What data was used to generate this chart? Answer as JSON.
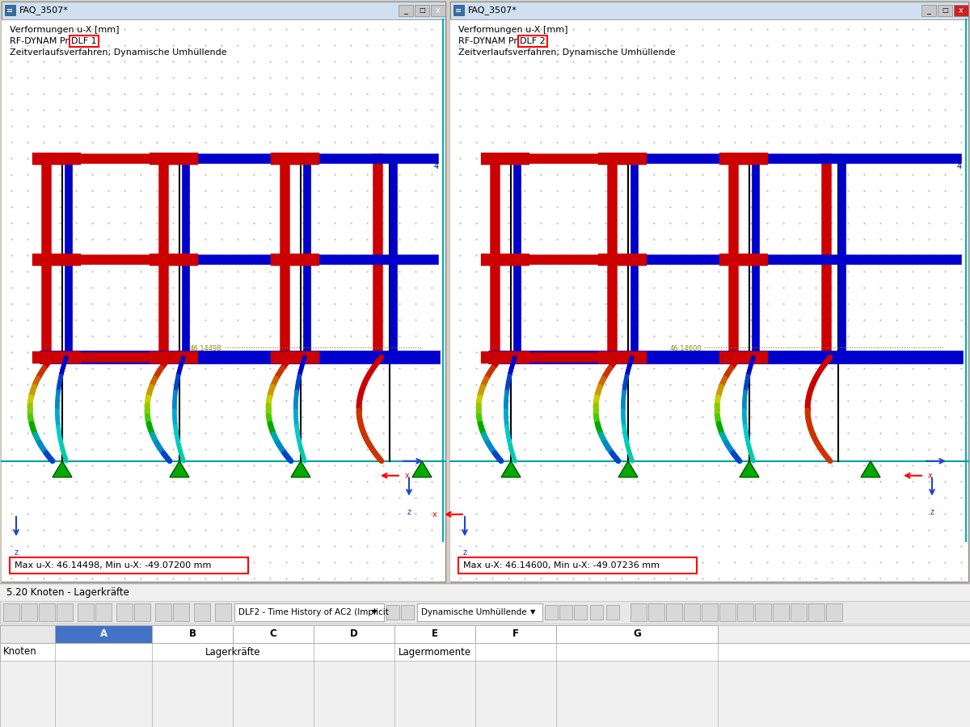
{
  "bg_color": "#d4d0c8",
  "window_bg": "#ffffff",
  "content_bg": "#f0f0f0",
  "grid_dot_color": "#c8c8c8",
  "title_bar_color": "#d0e0f0",
  "border_color": "#808080",
  "cyan_line_color": "#00b0b0",
  "left_window": {
    "title": "FAQ_3507*",
    "line1": "Verformungen u-X [mm]",
    "line2_pre": "RF-DYNAM Pro",
    "line2_box": "DLF 1",
    "line3": "Zeitverlaufsverfahren; Dynamische Umhüllende",
    "label_value": "46.14498",
    "result_text": "Max u-X: 46.14498, Min u-X: -49.07200 mm"
  },
  "right_window": {
    "title": "FAQ_3507*",
    "line1": "Verformungen u-X [mm]",
    "line2_pre": "RF-DYNAM Pro",
    "line2_box": "DLF 2",
    "line3": "Zeitverlaufsverfahren; Dynamische Umhüllende",
    "label_value": "46.14600",
    "result_text": "Max u-X: 46.14600, Min u-X: -49.07236 mm"
  },
  "bottom_bar": {
    "text": "5.20 Knoten - Lagerkräfte",
    "toolbar_text": "DLF2 - Time History of AC2 (Implicit",
    "toolbar_text2": "Dynamische Umhüllende",
    "col_a": "A",
    "col_b": "B",
    "col_c": "C",
    "col_d": "D",
    "col_e": "E",
    "col_f": "F",
    "col_g": "G",
    "row_knoten": "Knoten",
    "row_lagerkraefte": "Lagerkräfte",
    "row_lagermomente": "Lagermomente"
  },
  "frame_colors": {
    "red": "#cc0000",
    "blue": "#0000cc",
    "black": "#000000",
    "green": "#00aa00",
    "cyan_ground": "#00a0a0",
    "label_yellow": "#888800",
    "deform_colors": [
      "#cc0000",
      "#cc3300",
      "#cc6600",
      "#cc9900",
      "#cccc00",
      "#88cc00",
      "#44cc00",
      "#00aa00",
      "#00aaaa",
      "#0088cc",
      "#0044cc",
      "#0000cc"
    ]
  },
  "figsize": [
    12.0,
    9.0
  ],
  "dpi": 100
}
